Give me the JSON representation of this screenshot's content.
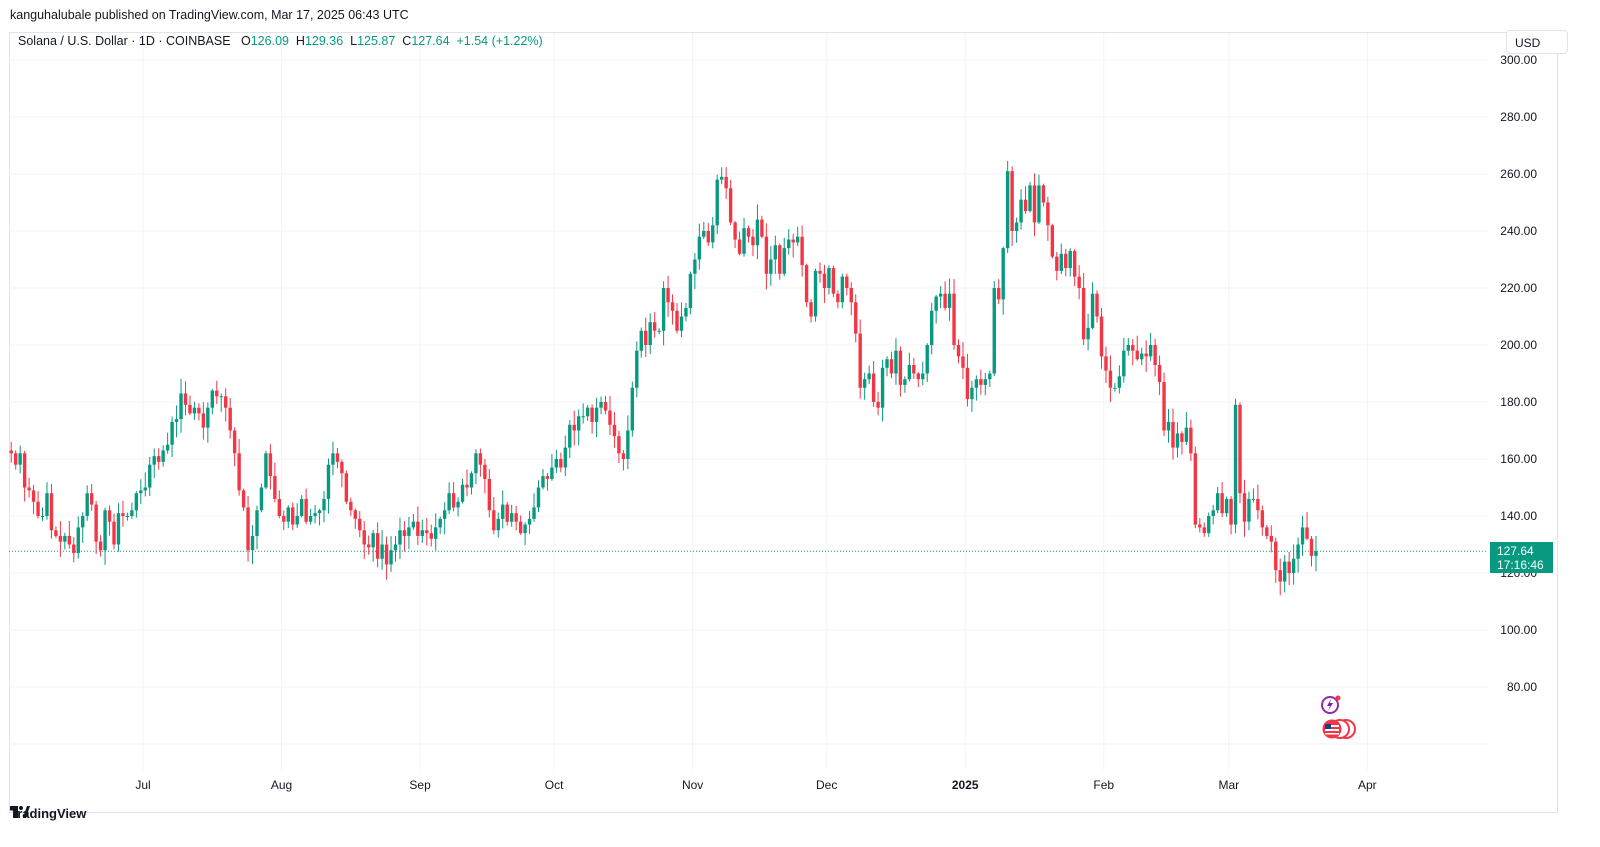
{
  "header": {
    "publisher_line": "kanguhalubale published on TradingView.com, Mar 17, 2025 06:43 UTC"
  },
  "legend": {
    "symbol": "Solana / U.S. Dollar · 1D · COINBASE",
    "open_label": "O",
    "open": "126.09",
    "high_label": "H",
    "high": "129.36",
    "low_label": "L",
    "low": "125.87",
    "close_label": "C",
    "close": "127.64",
    "change": "+1.54 (+1.22%)"
  },
  "currency_button": "USD",
  "last_price": {
    "price": "127.64",
    "countdown": "17:16:46"
  },
  "footer": {
    "brand": "TradingView"
  },
  "colors": {
    "up": "#089981",
    "down": "#f23645",
    "grid": "#f0f3fa",
    "axis_text": "#131722",
    "price_line": "#089981"
  },
  "icons": [
    "tradingview-logo-icon",
    "sparkle-icon",
    "flag-icon"
  ],
  "chart_data": {
    "type": "candlestick",
    "y_axis": {
      "ticks": [
        "300.00",
        "280.00",
        "260.00",
        "240.00",
        "220.00",
        "200.00",
        "180.00",
        "160.00",
        "140.00",
        "120.00",
        "100.00",
        "80.00"
      ],
      "range": [
        62,
        304
      ]
    },
    "x_axis": {
      "range": [
        "2024-06-01",
        "2025-04-28"
      ],
      "ticks": [
        {
          "label": "Jul",
          "date": "2024-07-01"
        },
        {
          "label": "Aug",
          "date": "2024-08-01"
        },
        {
          "label": "Sep",
          "date": "2024-09-01"
        },
        {
          "label": "Oct",
          "date": "2024-10-01"
        },
        {
          "label": "Nov",
          "date": "2024-11-01"
        },
        {
          "label": "Dec",
          "date": "2024-12-01"
        },
        {
          "label": "2025",
          "date": "2025-01-01",
          "bold": true
        },
        {
          "label": "Feb",
          "date": "2025-02-01"
        },
        {
          "label": "Mar",
          "date": "2025-03-01"
        },
        {
          "label": "Apr",
          "date": "2025-04-01"
        }
      ]
    },
    "start_date": "2024-06-01",
    "closes": [
      162,
      158,
      162,
      150,
      149,
      145,
      140,
      140,
      148,
      135,
      133,
      131,
      133,
      130,
      127,
      136,
      140,
      148,
      144,
      131,
      128,
      142,
      138,
      130,
      141,
      140,
      140,
      142,
      148,
      149,
      150,
      158,
      161,
      159,
      163,
      165,
      173,
      174,
      183,
      179,
      176,
      178,
      176,
      171,
      178,
      184,
      182,
      182,
      178,
      170,
      162,
      149,
      143,
      128,
      133,
      142,
      150,
      162,
      154,
      146,
      140,
      138,
      143,
      137,
      140,
      146,
      138,
      140,
      141,
      142,
      146,
      158,
      162,
      159,
      155,
      145,
      142,
      139,
      135,
      130,
      129,
      134,
      125,
      130,
      123,
      128,
      130,
      135,
      133,
      136,
      138,
      133,
      135,
      134,
      132,
      136,
      139,
      142,
      148,
      143,
      145,
      151,
      150,
      155,
      162,
      158,
      153,
      142,
      135,
      139,
      144,
      138,
      141,
      138,
      134,
      137,
      139,
      143,
      150,
      154,
      153,
      157,
      160,
      157,
      164,
      172,
      170,
      175,
      175,
      178,
      173,
      178,
      180,
      177,
      172,
      168,
      162,
      160,
      170,
      185,
      198,
      205,
      200,
      208,
      205,
      205,
      220,
      215,
      212,
      205,
      210,
      213,
      225,
      230,
      238,
      240,
      236,
      242,
      258,
      259,
      255,
      243,
      237,
      232,
      241,
      238,
      235,
      244,
      238,
      225,
      230,
      235,
      225,
      234,
      237,
      236,
      238,
      228,
      215,
      210,
      226,
      225,
      220,
      227,
      218,
      215,
      224,
      220,
      215,
      204,
      185,
      188,
      190,
      180,
      178,
      192,
      195,
      190,
      198,
      186,
      188,
      193,
      190,
      188,
      190,
      200,
      212,
      217,
      218,
      213,
      218,
      200,
      196,
      192,
      181,
      185,
      188,
      186,
      188,
      190,
      220,
      216,
      234,
      261,
      240,
      243,
      251,
      247,
      256,
      243,
      256,
      250,
      242,
      231,
      226,
      232,
      227,
      233,
      224,
      220,
      202,
      206,
      218,
      210,
      196,
      191,
      185,
      185,
      189,
      198,
      200,
      198,
      195,
      197,
      196,
      200,
      193,
      187,
      170,
      173,
      164,
      169,
      166,
      171,
      162,
      137,
      136,
      134,
      140,
      142,
      148,
      141,
      146,
      137,
      179,
      148,
      138,
      146,
      146,
      142,
      136,
      133,
      131,
      121,
      117,
      124,
      120,
      125,
      130,
      136,
      132,
      126,
      127.64
    ]
  }
}
